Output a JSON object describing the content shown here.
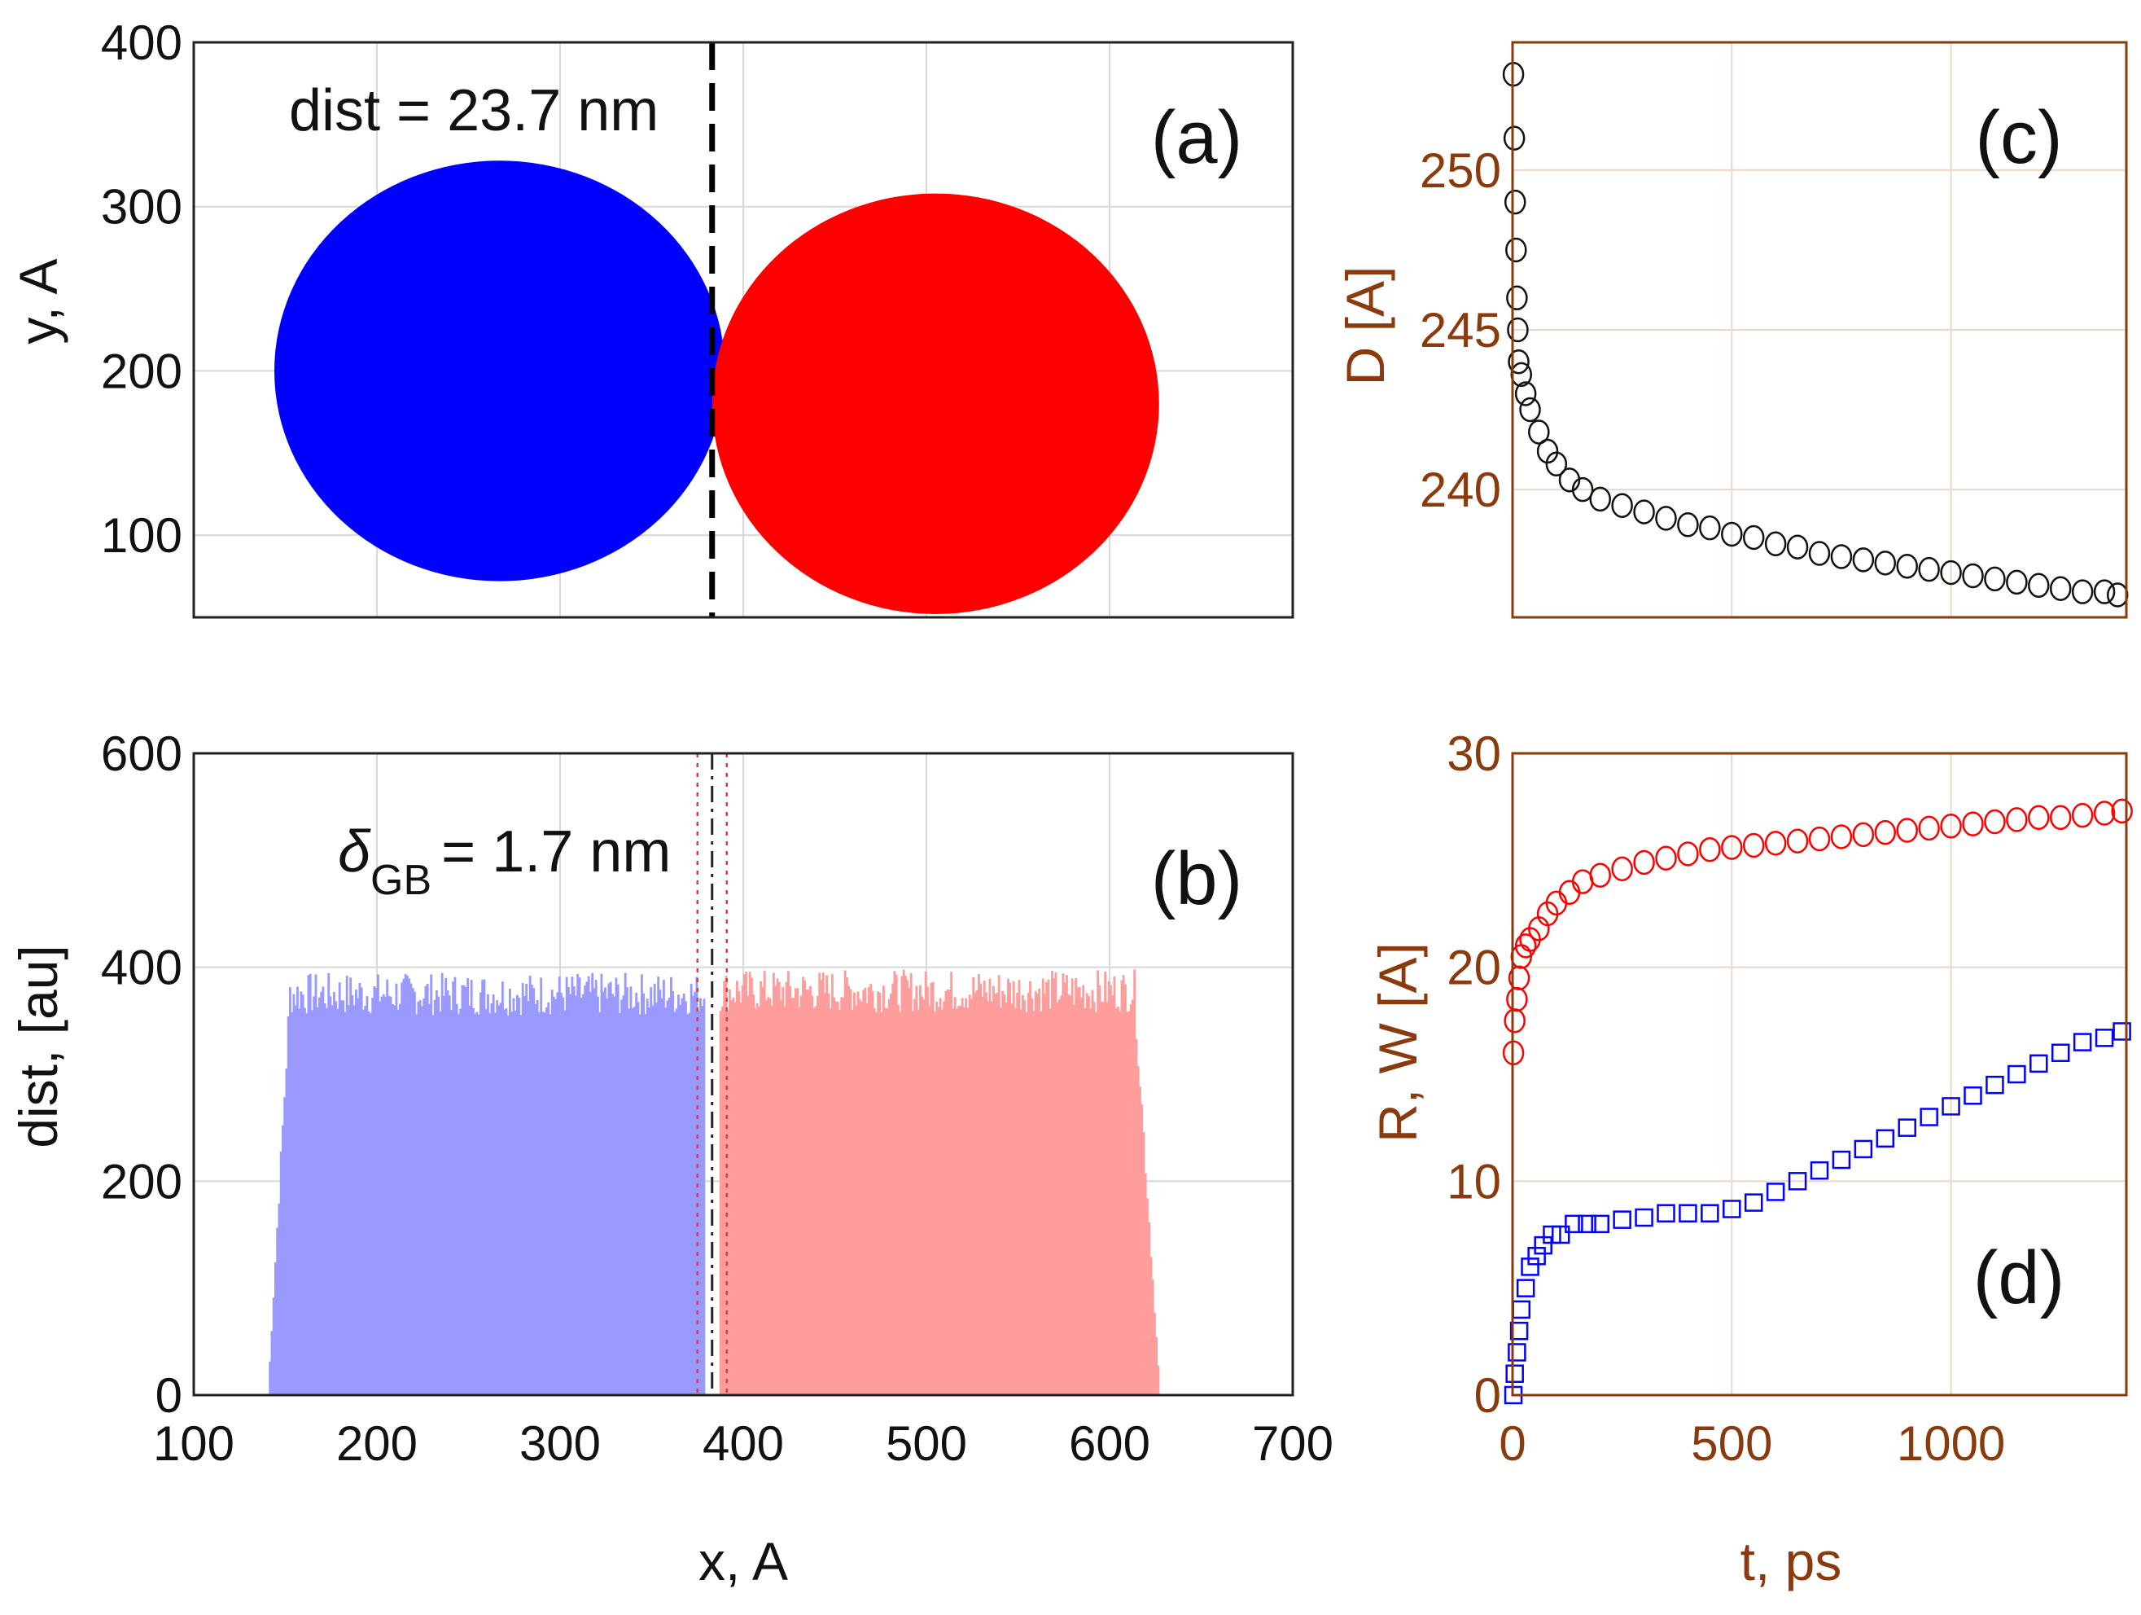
{
  "chart_data": [
    {
      "panel": "(a)",
      "type": "scatter",
      "description_label": "dist = 23.7 nm",
      "xlim": [
        100,
        700
      ],
      "ylim": [
        50,
        400
      ],
      "yticks": [
        "100",
        "200",
        "300",
        "400"
      ],
      "ylabel": "y, A",
      "grid": true,
      "divider_x": 383,
      "grains": [
        {
          "name": "left-grain",
          "color": "#0000ff",
          "cx": 267,
          "cy": 200,
          "rx": 123,
          "ry": 128
        },
        {
          "name": "right-grain",
          "color": "#ff0000",
          "cx": 505,
          "cy": 180,
          "rx": 122,
          "ry": 128
        }
      ]
    },
    {
      "panel": "(b)",
      "type": "bar",
      "description_label": "= 1.7 nm",
      "delta_symbol": "δ",
      "delta_sub": "GB",
      "xlim": [
        100,
        700
      ],
      "ylim": [
        0,
        600
      ],
      "xticks": [
        "100",
        "200",
        "300",
        "400",
        "500",
        "600",
        "700"
      ],
      "yticks": [
        "0",
        "200",
        "400",
        "600"
      ],
      "xlabel": "x, A",
      "ylabel": "dist, [au]",
      "grid": true,
      "gb_center": 383,
      "gb_bounds": [
        375,
        391
      ],
      "series": [
        {
          "name": "left-grain",
          "color": "#9999ff",
          "x_range": [
            140,
            378
          ],
          "plateau": 375
        },
        {
          "name": "right-grain",
          "color": "#ff9c9c",
          "x_range": [
            387,
            627
          ],
          "plateau": 378
        }
      ]
    },
    {
      "panel": "(c)",
      "type": "scatter",
      "xlim": [
        0,
        1400
      ],
      "ylim": [
        236,
        254
      ],
      "yticks": [
        "240",
        "245",
        "250"
      ],
      "ylabel": "D [A]",
      "grid": true,
      "series": [
        {
          "name": "D",
          "marker": "circle",
          "color": "#111111",
          "x": [
            2,
            4,
            6,
            8,
            10,
            12,
            14,
            20,
            30,
            40,
            60,
            80,
            100,
            130,
            160,
            200,
            250,
            300,
            350,
            400,
            450,
            500,
            550,
            600,
            650,
            700,
            750,
            800,
            850,
            900,
            950,
            1000,
            1050,
            1100,
            1150,
            1200,
            1250,
            1300,
            1350,
            1380
          ],
          "y": [
            253,
            251,
            249,
            247.5,
            246,
            245,
            244,
            243.6,
            243,
            242.5,
            241.8,
            241.2,
            240.8,
            240.3,
            240,
            239.7,
            239.5,
            239.3,
            239.1,
            238.9,
            238.8,
            238.6,
            238.5,
            238.3,
            238.2,
            238,
            237.9,
            237.8,
            237.7,
            237.6,
            237.5,
            237.4,
            237.3,
            237.2,
            237.1,
            237,
            236.9,
            236.8,
            236.8,
            236.7
          ]
        }
      ]
    },
    {
      "panel": "(d)",
      "type": "scatter",
      "xlim": [
        0,
        1400
      ],
      "ylim": [
        0,
        30
      ],
      "xticks": [
        "0",
        "500",
        "1000"
      ],
      "yticks": [
        "0",
        "10",
        "20",
        "30"
      ],
      "xlabel": "t, ps",
      "ylabel": "R, W [A]",
      "grid": true,
      "series": [
        {
          "name": "R",
          "marker": "circle",
          "color": "#ff0000",
          "x": [
            2,
            5,
            10,
            15,
            20,
            30,
            40,
            60,
            80,
            100,
            130,
            160,
            200,
            250,
            300,
            350,
            400,
            450,
            500,
            550,
            600,
            650,
            700,
            750,
            800,
            850,
            900,
            950,
            1000,
            1050,
            1100,
            1150,
            1200,
            1250,
            1300,
            1350,
            1390
          ],
          "y": [
            16,
            17.5,
            18.5,
            19.5,
            20.5,
            21,
            21.3,
            21.8,
            22.5,
            23,
            23.5,
            24,
            24.3,
            24.6,
            24.9,
            25.1,
            25.3,
            25.5,
            25.6,
            25.7,
            25.8,
            25.9,
            26,
            26.1,
            26.2,
            26.3,
            26.4,
            26.5,
            26.6,
            26.7,
            26.8,
            26.9,
            27,
            27,
            27.1,
            27.2,
            27.3
          ]
        },
        {
          "name": "W",
          "marker": "square",
          "color": "#0000ff",
          "x": [
            2,
            5,
            10,
            15,
            20,
            30,
            40,
            55,
            70,
            90,
            110,
            140,
            170,
            200,
            250,
            300,
            350,
            400,
            450,
            500,
            550,
            600,
            650,
            700,
            750,
            800,
            850,
            900,
            950,
            1000,
            1050,
            1100,
            1150,
            1200,
            1250,
            1300,
            1350,
            1390
          ],
          "y": [
            0,
            1,
            2,
            3,
            4,
            5,
            6,
            6.5,
            7,
            7.5,
            7.5,
            8,
            8,
            8,
            8.2,
            8.3,
            8.5,
            8.5,
            8.5,
            8.7,
            9,
            9.5,
            10,
            10.5,
            11,
            11.5,
            12,
            12.5,
            13,
            13.5,
            14,
            14.5,
            15,
            15.5,
            16,
            16.5,
            16.7,
            17
          ]
        }
      ]
    }
  ]
}
